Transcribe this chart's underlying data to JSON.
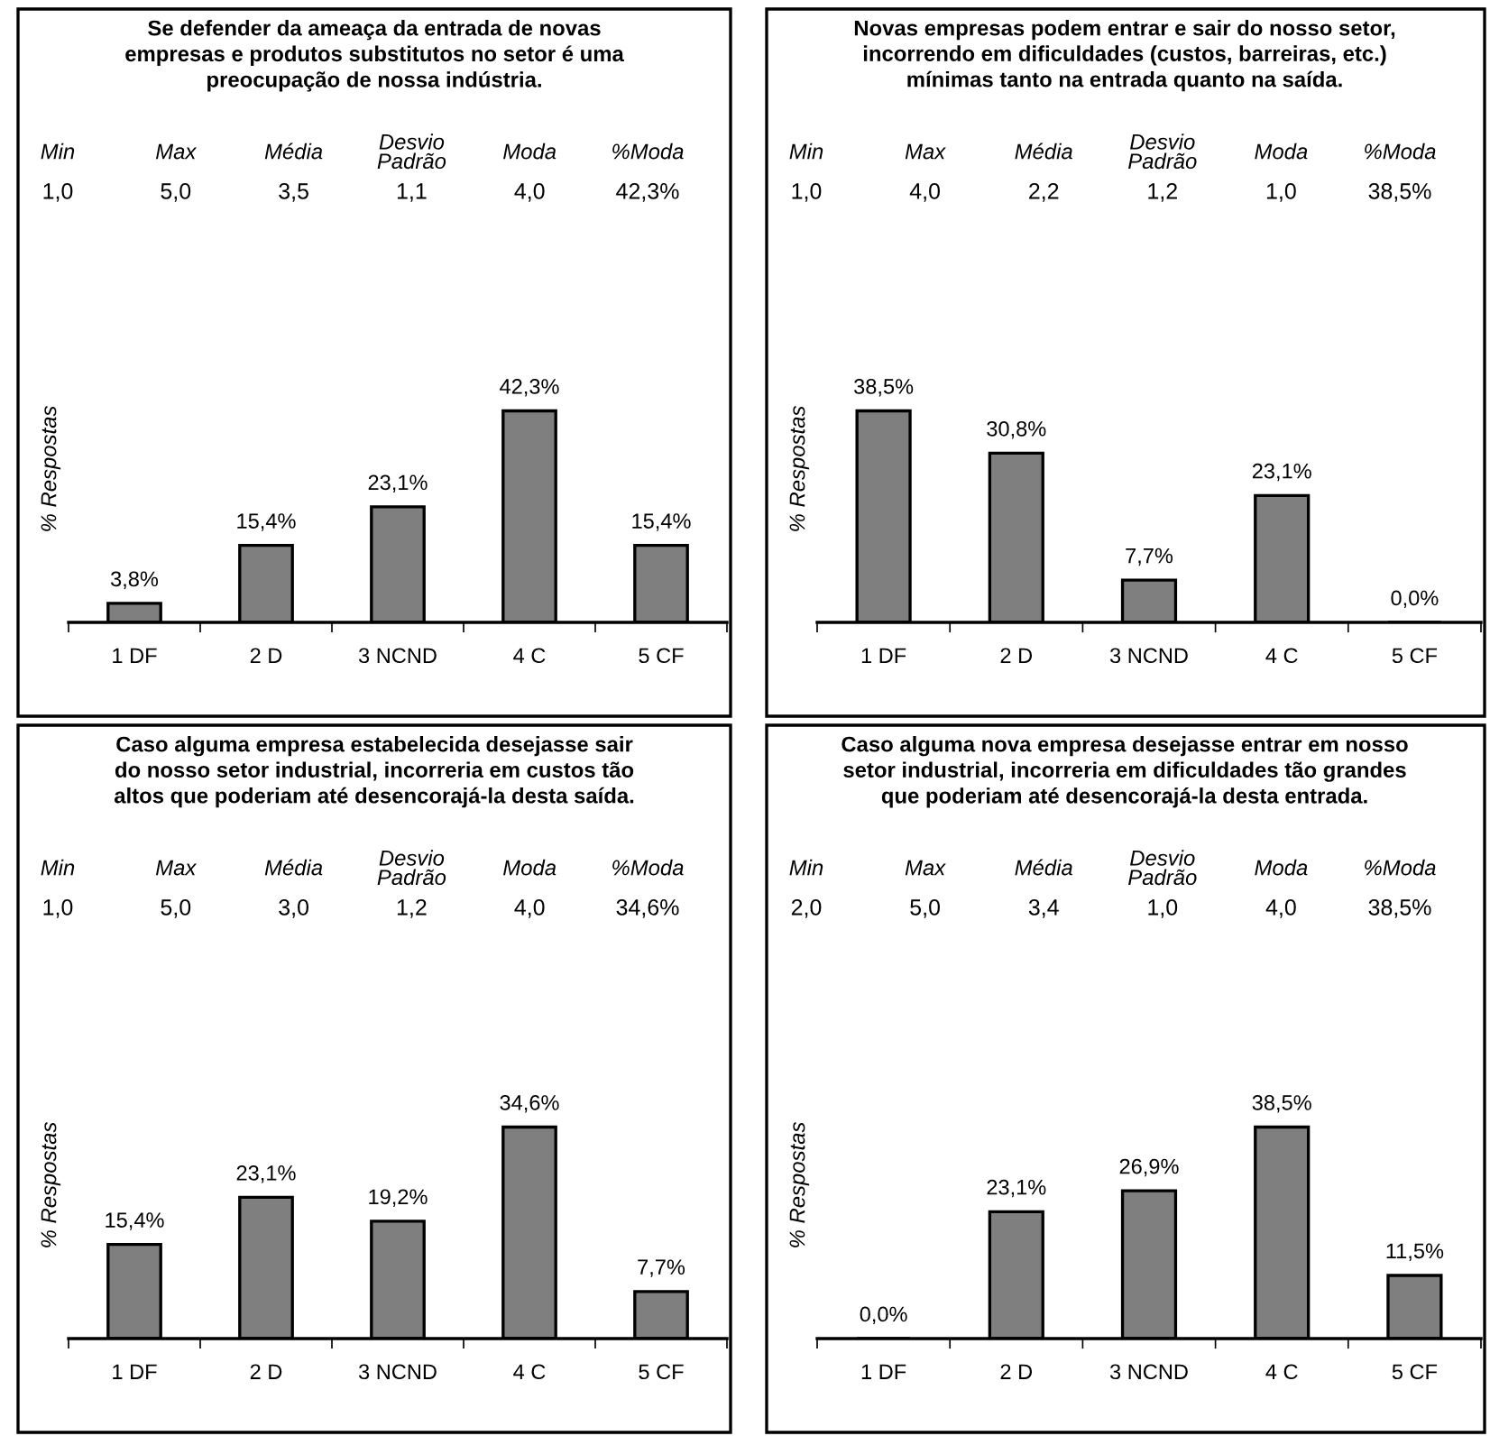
{
  "chart_data": [
    {
      "type": "bar",
      "title": "Se defender da ameaça da entrada de novas\nempresas e produtos substitutos no setor é uma\npreocupação de nossa indústria.",
      "ylabel": "% Respostas",
      "categories": [
        "1 DF",
        "2 D",
        "3 NCND",
        "4 C",
        "5 CF"
      ],
      "values": [
        3.8,
        15.4,
        23.1,
        42.3,
        15.4
      ],
      "value_labels": [
        "3,8%",
        "15,4%",
        "23,1%",
        "42,3%",
        "15,4%"
      ],
      "color": "#7f7f7f",
      "annotations": [
        "Min",
        "Max",
        "Média",
        "Desvio Padrão",
        "Moda",
        "%Moda",
        "1,0",
        "5,0",
        "3,5",
        "1,1",
        "4,0",
        "42,3%"
      ]
    },
    {
      "type": "bar",
      "title": "Novas empresas podem entrar e sair do nosso setor,\nincorrendo em dificuldades (custos, barreiras, etc.)\nmínimas tanto na entrada quanto na saída.",
      "ylabel": "% Respostas",
      "categories": [
        "1 DF",
        "2 D",
        "3 NCND",
        "4 C",
        "5 CF"
      ],
      "values": [
        38.5,
        30.8,
        7.7,
        23.1,
        0.0
      ],
      "value_labels": [
        "38,5%",
        "30,8%",
        "7,7%",
        "23,1%",
        "0,0%"
      ],
      "color": "#7f7f7f",
      "annotations": [
        "Min",
        "Max",
        "Média",
        "Desvio Padrão",
        "Moda",
        "%Moda",
        "1,0",
        "4,0",
        "2,2",
        "1,2",
        "1,0",
        "38,5%"
      ]
    },
    {
      "type": "bar",
      "title": "Caso alguma empresa estabelecida desejasse sair\ndo nosso setor industrial, incorreria em custos tão\naltos que poderiam até desencorajá-la desta saída.",
      "ylabel": "% Respostas",
      "categories": [
        "1 DF",
        "2 D",
        "3 NCND",
        "4 C",
        "5 CF"
      ],
      "values": [
        15.4,
        23.1,
        19.2,
        34.6,
        7.7
      ],
      "value_labels": [
        "15,4%",
        "23,1%",
        "19,2%",
        "34,6%",
        "7,7%"
      ],
      "color": "#7f7f7f",
      "annotations": [
        "Min",
        "Max",
        "Média",
        "Desvio Padrão",
        "Moda",
        "%Moda",
        "1,0",
        "5,0",
        "3,0",
        "1,2",
        "4,0",
        "34,6%"
      ]
    },
    {
      "type": "bar",
      "title": "Caso alguma nova empresa desejasse entrar em nosso\nsetor industrial, incorreria em dificuldades tão grandes\nque poderiam até desencorajá-la desta entrada.",
      "ylabel": "% Respostas",
      "categories": [
        "1 DF",
        "2 D",
        "3 NCND",
        "4 C",
        "5 CF"
      ],
      "values": [
        0.0,
        23.1,
        26.9,
        38.5,
        11.5
      ],
      "value_labels": [
        "0,0%",
        "23,1%",
        "26,9%",
        "38,5%",
        "11,5%"
      ],
      "color": "#7f7f7f",
      "annotations": [
        "Min",
        "Max",
        "Média",
        "Desvio Padrão",
        "Moda",
        "%Moda",
        "2,0",
        "5,0",
        "3,4",
        "1,0",
        "4,0",
        "38,5%"
      ]
    }
  ]
}
